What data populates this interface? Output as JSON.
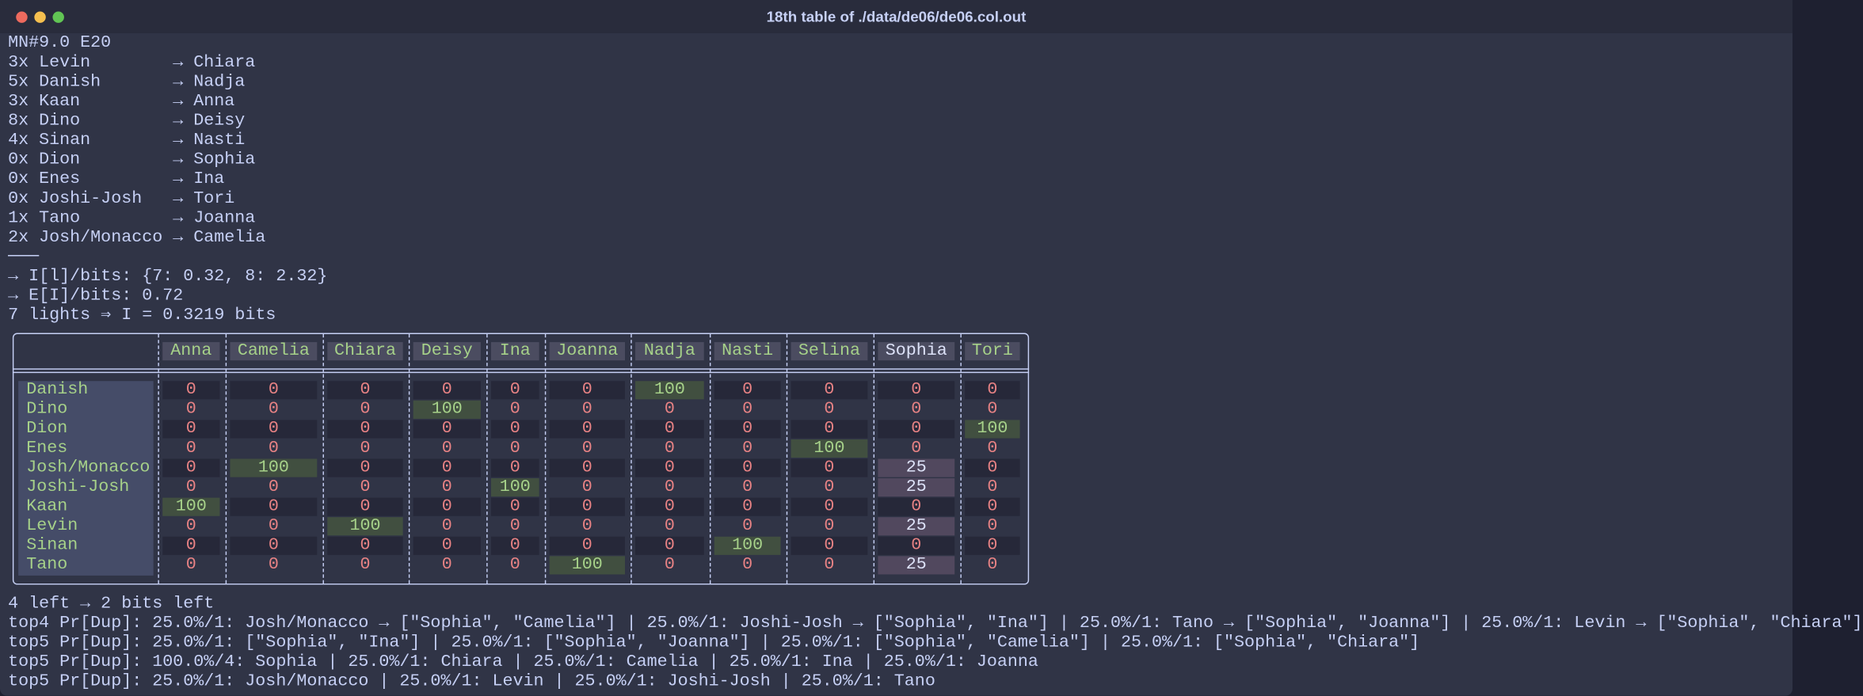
{
  "window": {
    "title": "18th table of ./data/de06/de06.col.out"
  },
  "header_lines": [
    "MN#9.0 E20",
    "3x Levin        → Chiara",
    "5x Danish       → Nadja",
    "3x Kaan         → Anna",
    "8x Dino         → Deisy",
    "4x Sinan        → Nasti",
    "0x Dion         → Sophia",
    "0x Enes         → Ina",
    "0x Joshi-Josh   → Tori",
    "1x Tano         → Joanna",
    "2x Josh/Monacco → Camelia",
    "───",
    "→ I[l]/bits: {7: 0.32, 8: 2.32}",
    "→ E[I]/bits: 0.72",
    "7 lights ⇒ I = 0.3219 bits"
  ],
  "table": {
    "columns": [
      "Anna",
      "Camelia",
      "Chiara",
      "Deisy",
      "Ina",
      "Joanna",
      "Nadja",
      "Nasti",
      "Selina",
      "Sophia",
      "Tori"
    ],
    "rows": [
      {
        "name": "Danish",
        "values": [
          0,
          0,
          0,
          0,
          0,
          0,
          100,
          0,
          0,
          0,
          0
        ]
      },
      {
        "name": "Dino",
        "values": [
          0,
          0,
          0,
          100,
          0,
          0,
          0,
          0,
          0,
          0,
          0
        ]
      },
      {
        "name": "Dion",
        "values": [
          0,
          0,
          0,
          0,
          0,
          0,
          0,
          0,
          0,
          0,
          100
        ]
      },
      {
        "name": "Enes",
        "values": [
          0,
          0,
          0,
          0,
          0,
          0,
          0,
          0,
          100,
          0,
          0
        ]
      },
      {
        "name": "Josh/Monacco",
        "values": [
          0,
          100,
          0,
          0,
          0,
          0,
          0,
          0,
          0,
          25,
          0
        ]
      },
      {
        "name": "Joshi-Josh",
        "values": [
          0,
          0,
          0,
          0,
          100,
          0,
          0,
          0,
          0,
          25,
          0
        ]
      },
      {
        "name": "Kaan",
        "values": [
          100,
          0,
          0,
          0,
          0,
          0,
          0,
          0,
          0,
          0,
          0
        ]
      },
      {
        "name": "Levin",
        "values": [
          0,
          0,
          100,
          0,
          0,
          0,
          0,
          0,
          0,
          25,
          0
        ]
      },
      {
        "name": "Sinan",
        "values": [
          0,
          0,
          0,
          0,
          0,
          0,
          0,
          100,
          0,
          0,
          0
        ]
      },
      {
        "name": "Tano",
        "values": [
          0,
          0,
          0,
          0,
          0,
          100,
          0,
          0,
          0,
          25,
          0
        ]
      }
    ]
  },
  "footer_lines": [
    "4 left → 2 bits left",
    "top4 Pr[Dup]: 25.0%/1: Josh/Monacco → [\"Sophia\", \"Camelia\"] | 25.0%/1: Joshi-Josh → [\"Sophia\", \"Ina\"] | 25.0%/1: Tano → [\"Sophia\", \"Joanna\"] | 25.0%/1: Levin → [\"Sophia\", \"Chiara\"]",
    "top5 Pr[Dup]: 25.0%/1: [\"Sophia\", \"Ina\"] | 25.0%/1: [\"Sophia\", \"Joanna\"] | 25.0%/1: [\"Sophia\", \"Camelia\"] | 25.0%/1: [\"Sophia\", \"Chiara\"]",
    "top5 Pr[Dup]: 100.0%/4: Sophia | 25.0%/1: Chiara | 25.0%/1: Camelia | 25.0%/1: Ina | 25.0%/1: Joanna",
    "top5 Pr[Dup]: 25.0%/1: Josh/Monacco | 25.0%/1: Levin | 25.0%/1: Joshi-Josh | 25.0%/1: Tano"
  ]
}
